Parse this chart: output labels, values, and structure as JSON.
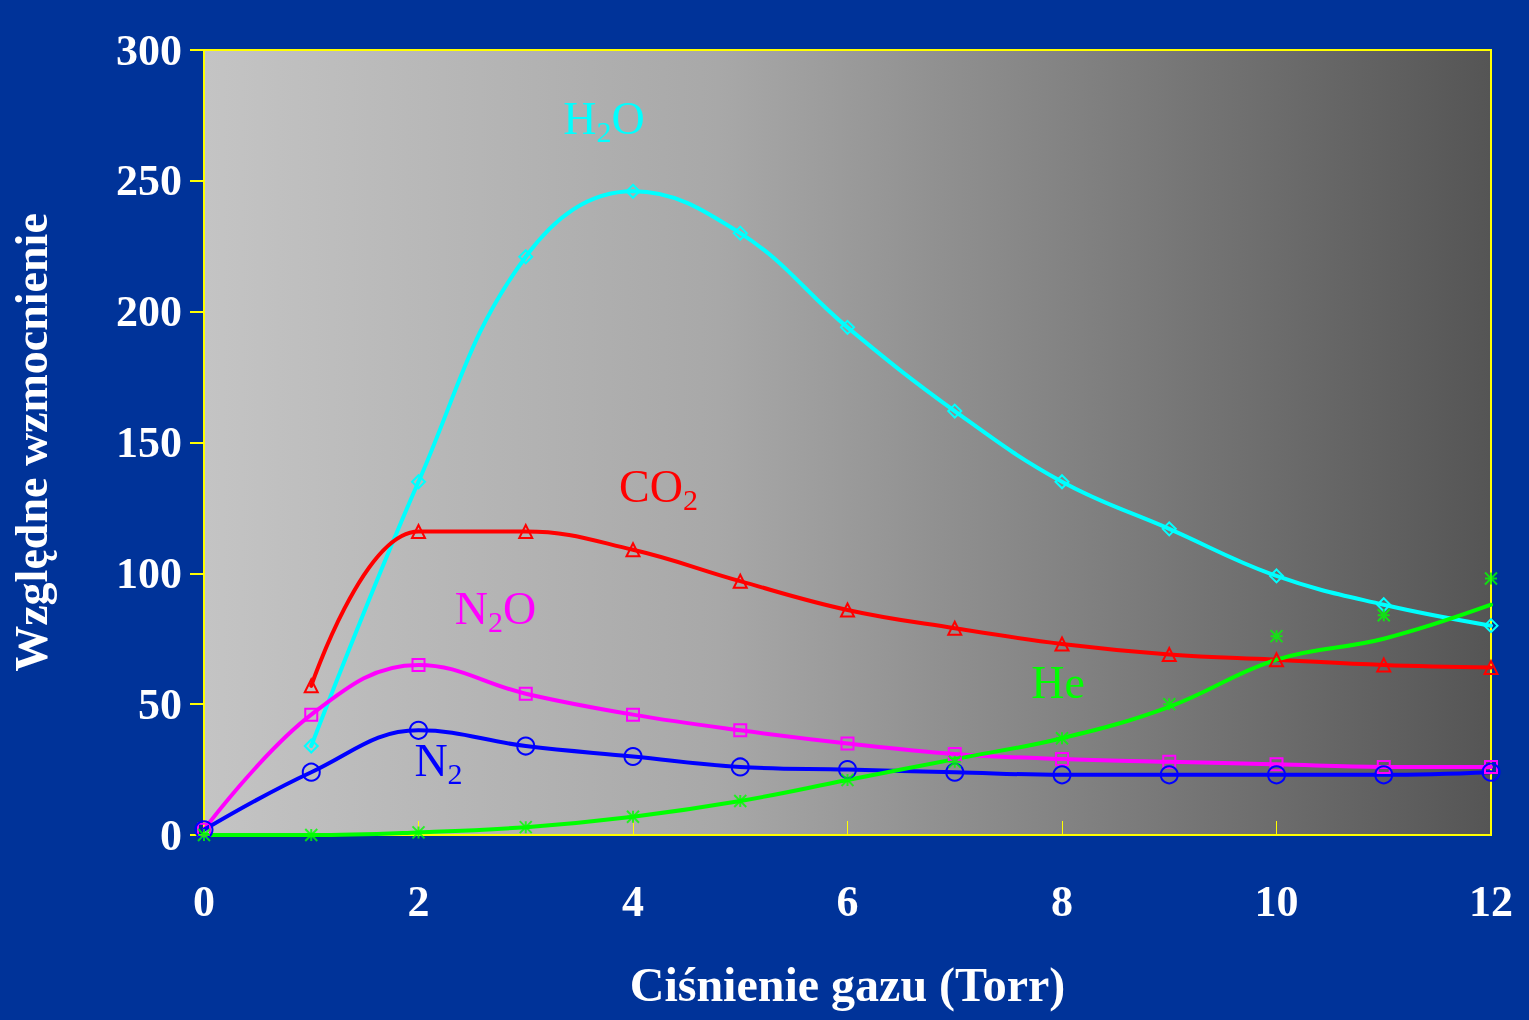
{
  "chart_data": {
    "type": "line",
    "xlabel": "Ciśnienie gazu (Torr)",
    "ylabel": "Względne wzmocnienie",
    "x": [
      0,
      1,
      2,
      3,
      4,
      5,
      6,
      7,
      8,
      9,
      10,
      11,
      12
    ],
    "xlim": [
      0,
      12
    ],
    "xticks": [
      0,
      2,
      4,
      6,
      8,
      10,
      12
    ],
    "ylim": [
      0,
      300
    ],
    "yticks": [
      0,
      50,
      100,
      150,
      200,
      250,
      300
    ],
    "grid": false,
    "legend": false,
    "series": [
      {
        "name": "H$_{2}$O",
        "color": "#00ffff",
        "marker": "diamond",
        "values": [
          null,
          34,
          135,
          221,
          246,
          230,
          194,
          162,
          135,
          117,
          99,
          88,
          80
        ]
      },
      {
        "name": "CO$_{2}$",
        "color": "#ff0000",
        "marker": "triangle",
        "values": [
          null,
          57,
          116,
          116,
          109,
          97,
          86,
          79,
          73,
          69,
          67,
          65,
          64
        ]
      },
      {
        "name": "N$_{2}$O",
        "color": "#ff00ff",
        "marker": "square",
        "values": [
          2,
          46,
          65,
          54,
          46,
          40,
          35,
          31,
          29,
          28,
          27,
          26,
          26
        ]
      },
      {
        "name": "N$_{2}$",
        "color": "#0000ff",
        "marker": "circle",
        "values": [
          2,
          24,
          40,
          34,
          30,
          26,
          25,
          24,
          23,
          23,
          23,
          23,
          24
        ]
      },
      {
        "name": "He",
        "color": "#00ff00",
        "marker": "none",
        "values": [
          0,
          0,
          1,
          3,
          7,
          13,
          21,
          29,
          37,
          49,
          67,
          75,
          88
        ]
      },
      {
        "type": "scatter",
        "color": "#00ff00",
        "marker": "cross",
        "values": [
          0,
          0,
          1,
          3,
          7,
          13,
          21,
          28,
          37,
          50,
          76,
          84,
          98
        ]
      }
    ]
  }
}
